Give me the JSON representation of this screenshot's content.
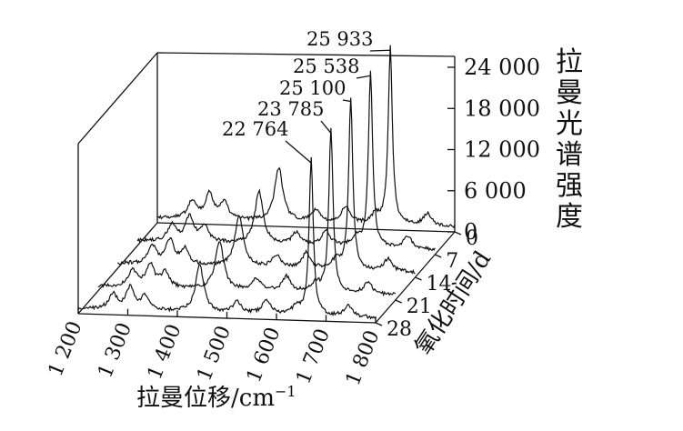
{
  "chart_data": {
    "type": "line",
    "chart_kind": "3D waterfall of Raman spectra",
    "xlabel": "拉曼位移/cm",
    "xlabel_sup": "−1",
    "ylabel": "拉曼光谱强度",
    "zlabel": "氧化时间/d",
    "x_ticks": [
      "1 200",
      "1 300",
      "1 400",
      "1 500",
      "1 600",
      "1 700",
      "1 800"
    ],
    "x_range": [
      1200,
      1800
    ],
    "y_ticks": [
      "0",
      "6 000",
      "12 000",
      "18 000",
      "24 000"
    ],
    "y_range": [
      0,
      24000
    ],
    "z_ticks": [
      "0",
      "7",
      "14",
      "21",
      "28"
    ],
    "series": [
      {
        "day": 0,
        "peak_label": "25 933",
        "peak_x": 1670,
        "peak_value": 25933
      },
      {
        "day": 7,
        "peak_label": "25 538",
        "peak_x": 1670,
        "peak_value": 25538
      },
      {
        "day": 14,
        "peak_label": "25 100",
        "peak_x": 1670,
        "peak_value": 25100
      },
      {
        "day": 21,
        "peak_label": "23 785",
        "peak_x": 1670,
        "peak_value": 23785
      },
      {
        "day": 28,
        "peak_label": "22 764",
        "peak_x": 1670,
        "peak_value": 22764
      }
    ],
    "shape_peaks": [
      {
        "x": 1270,
        "rel": 0.1
      },
      {
        "x": 1305,
        "rel": 0.14
      },
      {
        "x": 1335,
        "rel": 0.09
      },
      {
        "x": 1445,
        "rel": 0.3
      },
      {
        "x": 1520,
        "rel": 0.07
      },
      {
        "x": 1580,
        "rel": 0.09
      },
      {
        "x": 1640,
        "rel": 0.05
      },
      {
        "x": 1670,
        "rel": 1.0
      },
      {
        "x": 1745,
        "rel": 0.07
      }
    ],
    "grid": false,
    "legend": "none"
  }
}
